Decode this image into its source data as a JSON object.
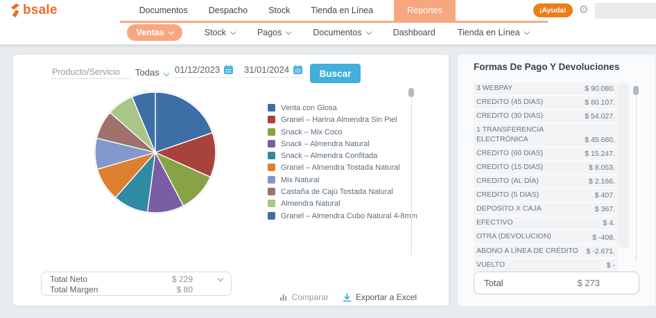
{
  "brand": {
    "name": "bsale"
  },
  "header": {
    "nav": [
      {
        "label": "Documentos",
        "active": false
      },
      {
        "label": "Despacho",
        "active": false
      },
      {
        "label": "Stock",
        "active": false
      },
      {
        "label": "Tienda en Línea",
        "active": false
      },
      {
        "label": "Reportes",
        "active": true
      }
    ],
    "help_label": "¡Ayuda!"
  },
  "subnav": {
    "items": [
      {
        "label": "Ventas",
        "active": true,
        "chevron": true
      },
      {
        "label": "Stock",
        "active": false,
        "chevron": true
      },
      {
        "label": "Pagos",
        "active": false,
        "chevron": true
      },
      {
        "label": "Documentos",
        "active": false,
        "chevron": true
      },
      {
        "label": "Dashboard",
        "active": false,
        "chevron": false
      },
      {
        "label": "Tienda en Línea",
        "active": false,
        "chevron": true
      }
    ]
  },
  "filters": {
    "product_placeholder": "Producto/Servicio",
    "branch_selected": "Todas",
    "date_from": "01/12/2023",
    "date_to": "31/01/2024",
    "search_label": "Buscar"
  },
  "chart_data": {
    "type": "pie",
    "labels": [
      "Venta con Glosa",
      "Granel – Harina Almendra Sin Piel",
      "Snack – Mix Coco",
      "Snack – Almendra Natural",
      "Snack – Almendra Confitada",
      "Granel – Almendra Tostada Natural",
      "Mix Natural",
      "Castaña de Cajú Tostada Natural",
      "Almendra Natural",
      "Granel – Almendra Cubo Natural 4-8mm"
    ],
    "values": [
      19.7,
      12.0,
      10.6,
      9.8,
      9.4,
      9.0,
      8.3,
      7.7,
      7.2,
      6.3
    ],
    "colors": [
      "#3d6ea6",
      "#a8433c",
      "#87a346",
      "#7a5ea5",
      "#2f8aa3",
      "#de7e2f",
      "#8398cb",
      "#9e716d",
      "#a9c587",
      "#3d6ea6"
    ],
    "legend_position": "right",
    "start_angle_deg": 0,
    "direction": "clockwise"
  },
  "totals_left": {
    "rows": [
      {
        "label": "Total Neto",
        "value": "$ 229"
      },
      {
        "label": "Total Margen",
        "value": "$ 80"
      }
    ]
  },
  "actions": {
    "compare_label": "Comparar",
    "export_label": "Exportar a Excel"
  },
  "payments": {
    "title": "Formas De Pago Y Devoluciones",
    "rows": [
      {
        "label": "3 WEBPAY",
        "value": "$ 90.080."
      },
      {
        "label": "CREDITO (45 DIAS)",
        "value": "$ 60.107."
      },
      {
        "label": "CREDITO (30 DIAS)",
        "value": "$ 54.027."
      },
      {
        "label": "1 TRANSFERENCIA ELECTRÓNICA",
        "value": "$ 45.680."
      },
      {
        "label": "CREDITO (60 DIAS)",
        "value": "$ 15.247."
      },
      {
        "label": "CREDITO (15 DIAS)",
        "value": "$ 8.053."
      },
      {
        "label": "CREDITO (AL DÍA)",
        "value": "$ 2.166."
      },
      {
        "label": "CREDITO (5 DIAS)",
        "value": "$ 407."
      },
      {
        "label": "DEPOSITO X CAJA",
        "value": "$ 367."
      },
      {
        "label": "EFECTIVO",
        "value": "$ 4."
      },
      {
        "label": "OTRA (DEVOLUCION)",
        "value": "$ -408."
      },
      {
        "label": "ABONO A LÍNEA DE CRÉDITO",
        "value": "$ -2.671."
      },
      {
        "label": "VUELTO",
        "value": "$ -"
      }
    ],
    "total_label": "Total",
    "total_value": "$ 273"
  },
  "colors": {
    "brand_orange": "#f26a21",
    "tab_salmon": "#f6a77f",
    "help_orange": "#ee7d18",
    "primary_blue": "#41aedb",
    "link_blue": "#3a9fd8"
  }
}
